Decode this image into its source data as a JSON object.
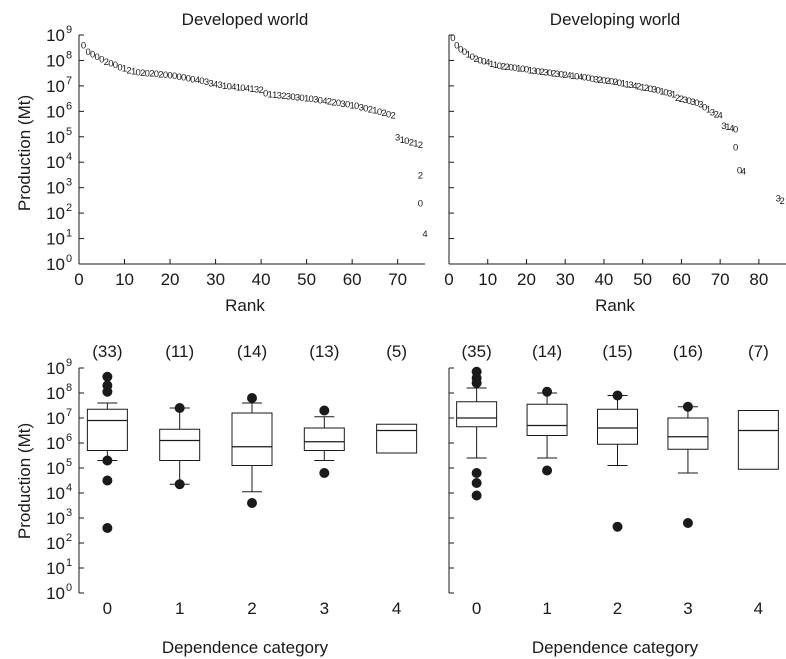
{
  "figure": {
    "y_unit_label": "Production (Mt)",
    "y_tick_labels": [
      "10",
      "10",
      "10",
      "10",
      "10",
      "10",
      "10",
      "10",
      "10",
      "10"
    ],
    "y_tick_exponents": [
      "0",
      "1",
      "2",
      "3",
      "4",
      "5",
      "6",
      "7",
      "8",
      "9"
    ]
  },
  "chart_data": [
    {
      "type": "scatter",
      "title": "Developed world",
      "xlabel": "Rank",
      "ylabel": "Production (Mt)",
      "yscale": "log10",
      "ylim": [
        1,
        1000000000
      ],
      "xlim": [
        0,
        76
      ],
      "x_tick_labels": [
        "0",
        "10",
        "20",
        "30",
        "40",
        "50",
        "60",
        "70"
      ],
      "marker": "dependence-category digit",
      "points": [
        {
          "x": 1,
          "label": "0",
          "log10_y": 8.6
        },
        {
          "x": 2,
          "label": "0",
          "log10_y": 8.35
        },
        {
          "x": 3,
          "label": "0",
          "log10_y": 8.25
        },
        {
          "x": 4,
          "label": "0",
          "log10_y": 8.15
        },
        {
          "x": 5,
          "label": "0",
          "log10_y": 8.05
        },
        {
          "x": 6,
          "label": "2",
          "log10_y": 7.95
        },
        {
          "x": 7,
          "label": "0",
          "log10_y": 7.9
        },
        {
          "x": 8,
          "label": "0",
          "log10_y": 7.85
        },
        {
          "x": 9,
          "label": "0",
          "log10_y": 7.75
        },
        {
          "x": 10,
          "label": "1",
          "log10_y": 7.7
        },
        {
          "x": 11,
          "label": "2",
          "log10_y": 7.62
        },
        {
          "x": 12,
          "label": "1",
          "log10_y": 7.58
        },
        {
          "x": 13,
          "label": "0",
          "log10_y": 7.55
        },
        {
          "x": 14,
          "label": "2",
          "log10_y": 7.53
        },
        {
          "x": 15,
          "label": "0",
          "log10_y": 7.51
        },
        {
          "x": 16,
          "label": "2",
          "log10_y": 7.5
        },
        {
          "x": 17,
          "label": "0",
          "log10_y": 7.49
        },
        {
          "x": 18,
          "label": "2",
          "log10_y": 7.47
        },
        {
          "x": 19,
          "label": "0",
          "log10_y": 7.45
        },
        {
          "x": 20,
          "label": "0",
          "log10_y": 7.43
        },
        {
          "x": 21,
          "label": "0",
          "log10_y": 7.4
        },
        {
          "x": 22,
          "label": "0",
          "log10_y": 7.37
        },
        {
          "x": 23,
          "label": "0",
          "log10_y": 7.34
        },
        {
          "x": 24,
          "label": "0",
          "log10_y": 7.31
        },
        {
          "x": 25,
          "label": "0",
          "log10_y": 7.28
        },
        {
          "x": 26,
          "label": "4",
          "log10_y": 7.25
        },
        {
          "x": 27,
          "label": "0",
          "log10_y": 7.22
        },
        {
          "x": 28,
          "label": "3",
          "log10_y": 7.18
        },
        {
          "x": 29,
          "label": "3",
          "log10_y": 7.12
        },
        {
          "x": 30,
          "label": "4",
          "log10_y": 7.07
        },
        {
          "x": 31,
          "label": "3",
          "log10_y": 7.05
        },
        {
          "x": 32,
          "label": "1",
          "log10_y": 7.02
        },
        {
          "x": 33,
          "label": "0",
          "log10_y": 7.0
        },
        {
          "x": 34,
          "label": "4",
          "log10_y": 6.98
        },
        {
          "x": 35,
          "label": "1",
          "log10_y": 6.96
        },
        {
          "x": 36,
          "label": "0",
          "log10_y": 6.94
        },
        {
          "x": 37,
          "label": "4",
          "log10_y": 6.92
        },
        {
          "x": 38,
          "label": "1",
          "log10_y": 6.9
        },
        {
          "x": 39,
          "label": "3",
          "log10_y": 6.88
        },
        {
          "x": 40,
          "label": "2",
          "log10_y": 6.85
        },
        {
          "x": 41,
          "label": "0",
          "log10_y": 6.72
        },
        {
          "x": 42,
          "label": "1",
          "log10_y": 6.68
        },
        {
          "x": 43,
          "label": "1",
          "log10_y": 6.66
        },
        {
          "x": 44,
          "label": "3",
          "log10_y": 6.64
        },
        {
          "x": 45,
          "label": "2",
          "log10_y": 6.62
        },
        {
          "x": 46,
          "label": "3",
          "log10_y": 6.6
        },
        {
          "x": 47,
          "label": "0",
          "log10_y": 6.58
        },
        {
          "x": 48,
          "label": "3",
          "log10_y": 6.57
        },
        {
          "x": 49,
          "label": "0",
          "log10_y": 6.55
        },
        {
          "x": 50,
          "label": "1",
          "log10_y": 6.53
        },
        {
          "x": 51,
          "label": "0",
          "log10_y": 6.5
        },
        {
          "x": 52,
          "label": "3",
          "log10_y": 6.48
        },
        {
          "x": 53,
          "label": "0",
          "log10_y": 6.45
        },
        {
          "x": 54,
          "label": "4",
          "log10_y": 6.42
        },
        {
          "x": 55,
          "label": "2",
          "log10_y": 6.4
        },
        {
          "x": 56,
          "label": "2",
          "log10_y": 6.37
        },
        {
          "x": 57,
          "label": "0",
          "log10_y": 6.34
        },
        {
          "x": 58,
          "label": "3",
          "log10_y": 6.31
        },
        {
          "x": 59,
          "label": "0",
          "log10_y": 6.28
        },
        {
          "x": 60,
          "label": "1",
          "log10_y": 6.25
        },
        {
          "x": 61,
          "label": "0",
          "log10_y": 6.22
        },
        {
          "x": 62,
          "label": "3",
          "log10_y": 6.18
        },
        {
          "x": 63,
          "label": "0",
          "log10_y": 6.14
        },
        {
          "x": 64,
          "label": "2",
          "log10_y": 6.1
        },
        {
          "x": 65,
          "label": "1",
          "log10_y": 6.05
        },
        {
          "x": 66,
          "label": "0",
          "log10_y": 6.0
        },
        {
          "x": 67,
          "label": "2",
          "log10_y": 5.95
        },
        {
          "x": 68,
          "label": "0",
          "log10_y": 5.9
        },
        {
          "x": 69,
          "label": "2",
          "log10_y": 5.85
        },
        {
          "x": 70,
          "label": "3",
          "log10_y": 5.0
        },
        {
          "x": 71,
          "label": "1",
          "log10_y": 4.9
        },
        {
          "x": 72,
          "label": "0",
          "log10_y": 4.85
        },
        {
          "x": 73,
          "label": "2",
          "log10_y": 4.8
        },
        {
          "x": 74,
          "label": "1",
          "log10_y": 4.75
        },
        {
          "x": 75,
          "label": "2",
          "log10_y": 4.7
        },
        {
          "x": 75,
          "label": "2",
          "log10_y": 3.5
        },
        {
          "x": 75,
          "label": "0",
          "log10_y": 2.4
        },
        {
          "x": 76,
          "label": "4",
          "log10_y": 1.2
        }
      ]
    },
    {
      "type": "scatter",
      "title": "Developing world",
      "xlabel": "Rank",
      "ylabel": "",
      "yscale": "log10",
      "ylim": [
        1,
        1000000000
      ],
      "xlim": [
        0,
        87
      ],
      "x_tick_labels": [
        "0",
        "10",
        "20",
        "30",
        "40",
        "50",
        "60",
        "70",
        "80"
      ],
      "marker": "dependence-category digit",
      "points": [
        {
          "x": 1,
          "label": "0",
          "log10_y": 8.9
        },
        {
          "x": 2,
          "label": "0",
          "log10_y": 8.6
        },
        {
          "x": 3,
          "label": "0",
          "log10_y": 8.45
        },
        {
          "x": 4,
          "label": "0",
          "log10_y": 8.35
        },
        {
          "x": 5,
          "label": "1",
          "log10_y": 8.25
        },
        {
          "x": 6,
          "label": "0",
          "log10_y": 8.15
        },
        {
          "x": 7,
          "label": "2",
          "log10_y": 8.08
        },
        {
          "x": 8,
          "label": "0",
          "log10_y": 8.02
        },
        {
          "x": 9,
          "label": "0",
          "log10_y": 7.98
        },
        {
          "x": 10,
          "label": "4",
          "log10_y": 7.93
        },
        {
          "x": 11,
          "label": "1",
          "log10_y": 7.88
        },
        {
          "x": 12,
          "label": "1",
          "log10_y": 7.85
        },
        {
          "x": 13,
          "label": "0",
          "log10_y": 7.8
        },
        {
          "x": 14,
          "label": "2",
          "log10_y": 7.78
        },
        {
          "x": 15,
          "label": "2",
          "log10_y": 7.76
        },
        {
          "x": 16,
          "label": "0",
          "log10_y": 7.74
        },
        {
          "x": 17,
          "label": "0",
          "log10_y": 7.72
        },
        {
          "x": 18,
          "label": "1",
          "log10_y": 7.7
        },
        {
          "x": 19,
          "label": "0",
          "log10_y": 7.68
        },
        {
          "x": 20,
          "label": "0",
          "log10_y": 7.66
        },
        {
          "x": 21,
          "label": "1",
          "log10_y": 7.63
        },
        {
          "x": 22,
          "label": "3",
          "log10_y": 7.6
        },
        {
          "x": 23,
          "label": "0",
          "log10_y": 7.58
        },
        {
          "x": 24,
          "label": "2",
          "log10_y": 7.56
        },
        {
          "x": 25,
          "label": "3",
          "log10_y": 7.54
        },
        {
          "x": 26,
          "label": "0",
          "log10_y": 7.52
        },
        {
          "x": 27,
          "label": "2",
          "log10_y": 7.5
        },
        {
          "x": 28,
          "label": "3",
          "log10_y": 7.48
        },
        {
          "x": 29,
          "label": "0",
          "log10_y": 7.46
        },
        {
          "x": 30,
          "label": "2",
          "log10_y": 7.44
        },
        {
          "x": 31,
          "label": "4",
          "log10_y": 7.42
        },
        {
          "x": 32,
          "label": "1",
          "log10_y": 7.4
        },
        {
          "x": 33,
          "label": "0",
          "log10_y": 7.38
        },
        {
          "x": 34,
          "label": "4",
          "log10_y": 7.36
        },
        {
          "x": 35,
          "label": "0",
          "log10_y": 7.34
        },
        {
          "x": 36,
          "label": "0",
          "log10_y": 7.32
        },
        {
          "x": 37,
          "label": "0",
          "log10_y": 7.3
        },
        {
          "x": 38,
          "label": "3",
          "log10_y": 7.28
        },
        {
          "x": 39,
          "label": "2",
          "log10_y": 7.26
        },
        {
          "x": 40,
          "label": "0",
          "log10_y": 7.24
        },
        {
          "x": 41,
          "label": "2",
          "log10_y": 7.22
        },
        {
          "x": 42,
          "label": "0",
          "log10_y": 7.2
        },
        {
          "x": 43,
          "label": "2",
          "log10_y": 7.17
        },
        {
          "x": 44,
          "label": "0",
          "log10_y": 7.14
        },
        {
          "x": 45,
          "label": "1",
          "log10_y": 7.11
        },
        {
          "x": 46,
          "label": "1",
          "log10_y": 7.08
        },
        {
          "x": 47,
          "label": "3",
          "log10_y": 7.05
        },
        {
          "x": 48,
          "label": "4",
          "log10_y": 7.02
        },
        {
          "x": 49,
          "label": "2",
          "log10_y": 6.99
        },
        {
          "x": 50,
          "label": "1",
          "log10_y": 6.96
        },
        {
          "x": 51,
          "label": "2",
          "log10_y": 6.93
        },
        {
          "x": 52,
          "label": "0",
          "log10_y": 6.9
        },
        {
          "x": 53,
          "label": "3",
          "log10_y": 6.87
        },
        {
          "x": 54,
          "label": "0",
          "log10_y": 6.84
        },
        {
          "x": 55,
          "label": "1",
          "log10_y": 6.8
        },
        {
          "x": 56,
          "label": "0",
          "log10_y": 6.76
        },
        {
          "x": 57,
          "label": "3",
          "log10_y": 6.72
        },
        {
          "x": 58,
          "label": "1",
          "log10_y": 6.68
        },
        {
          "x": 59,
          "label": "2",
          "log10_y": 6.55
        },
        {
          "x": 60,
          "label": "2",
          "log10_y": 6.5
        },
        {
          "x": 61,
          "label": "3",
          "log10_y": 6.46
        },
        {
          "x": 62,
          "label": "0",
          "log10_y": 6.42
        },
        {
          "x": 63,
          "label": "3",
          "log10_y": 6.38
        },
        {
          "x": 64,
          "label": "0",
          "log10_y": 6.34
        },
        {
          "x": 65,
          "label": "3",
          "log10_y": 6.28
        },
        {
          "x": 66,
          "label": "0",
          "log10_y": 6.18
        },
        {
          "x": 67,
          "label": "1",
          "log10_y": 6.1
        },
        {
          "x": 68,
          "label": "3",
          "log10_y": 5.98
        },
        {
          "x": 69,
          "label": "2",
          "log10_y": 5.9
        },
        {
          "x": 70,
          "label": "4",
          "log10_y": 5.85
        },
        {
          "x": 71,
          "label": "3",
          "log10_y": 5.45
        },
        {
          "x": 72,
          "label": "1",
          "log10_y": 5.4
        },
        {
          "x": 73,
          "label": "4",
          "log10_y": 5.35
        },
        {
          "x": 74,
          "label": "0",
          "log10_y": 5.3
        },
        {
          "x": 74,
          "label": "0",
          "log10_y": 4.6
        },
        {
          "x": 75,
          "label": "0",
          "log10_y": 3.7
        },
        {
          "x": 76,
          "label": "4",
          "log10_y": 3.65
        },
        {
          "x": 85,
          "label": "3",
          "log10_y": 2.6
        },
        {
          "x": 86,
          "label": "2",
          "log10_y": 2.5
        }
      ]
    },
    {
      "type": "box",
      "title": "",
      "xlabel": "Dependence category",
      "ylabel": "Production (Mt)",
      "yscale": "log10",
      "ylim": [
        1,
        1000000000
      ],
      "categories": [
        "0",
        "1",
        "2",
        "3",
        "4"
      ],
      "counts": [
        "(33)",
        "(11)",
        "(14)",
        "(13)",
        "(5)"
      ],
      "boxes": [
        {
          "category": "0",
          "whisker_low": 5.3,
          "q1": 5.7,
          "median": 6.9,
          "q3": 7.35,
          "whisker_high": 7.6,
          "outliers": [
            8.65,
            8.3,
            8.05,
            5.3,
            4.5,
            2.6
          ]
        },
        {
          "category": "1",
          "whisker_low": 4.35,
          "q1": 5.3,
          "median": 6.1,
          "q3": 6.55,
          "whisker_high": 7.4,
          "outliers": [
            7.4,
            4.35
          ]
        },
        {
          "category": "2",
          "whisker_low": 4.05,
          "q1": 5.1,
          "median": 5.85,
          "q3": 7.2,
          "whisker_high": 7.6,
          "outliers": [
            7.8,
            3.6
          ]
        },
        {
          "category": "3",
          "whisker_low": 5.3,
          "q1": 5.7,
          "median": 6.05,
          "q3": 6.6,
          "whisker_high": 7.05,
          "outliers": [
            7.3,
            4.8
          ]
        },
        {
          "category": "4",
          "whisker_low": null,
          "q1": 5.6,
          "median": 6.5,
          "q3": 6.75,
          "whisker_high": null,
          "outliers": []
        }
      ]
    },
    {
      "type": "box",
      "title": "",
      "xlabel": "Dependence category",
      "ylabel": "",
      "yscale": "log10",
      "ylim": [
        1,
        1000000000
      ],
      "categories": [
        "0",
        "1",
        "2",
        "3",
        "4"
      ],
      "counts": [
        "(35)",
        "(14)",
        "(15)",
        "(16)",
        "(7)"
      ],
      "boxes": [
        {
          "category": "0",
          "whisker_low": 5.4,
          "q1": 6.65,
          "median": 7.0,
          "q3": 7.65,
          "whisker_high": 8.2,
          "outliers": [
            8.85,
            8.6,
            8.4,
            4.8,
            4.4,
            3.9
          ]
        },
        {
          "category": "1",
          "whisker_low": 5.4,
          "q1": 6.3,
          "median": 6.7,
          "q3": 7.55,
          "whisker_high": 8.0,
          "outliers": [
            8.05,
            4.9
          ]
        },
        {
          "category": "2",
          "whisker_low": 5.1,
          "q1": 5.95,
          "median": 6.6,
          "q3": 7.35,
          "whisker_high": 7.9,
          "outliers": [
            7.9,
            2.65
          ]
        },
        {
          "category": "3",
          "whisker_low": 4.8,
          "q1": 5.75,
          "median": 6.25,
          "q3": 7.0,
          "whisker_high": 7.45,
          "outliers": [
            7.45,
            2.8
          ]
        },
        {
          "category": "4",
          "whisker_low": null,
          "q1": 4.95,
          "median": 6.5,
          "q3": 7.3,
          "whisker_high": null,
          "outliers": []
        }
      ]
    }
  ]
}
